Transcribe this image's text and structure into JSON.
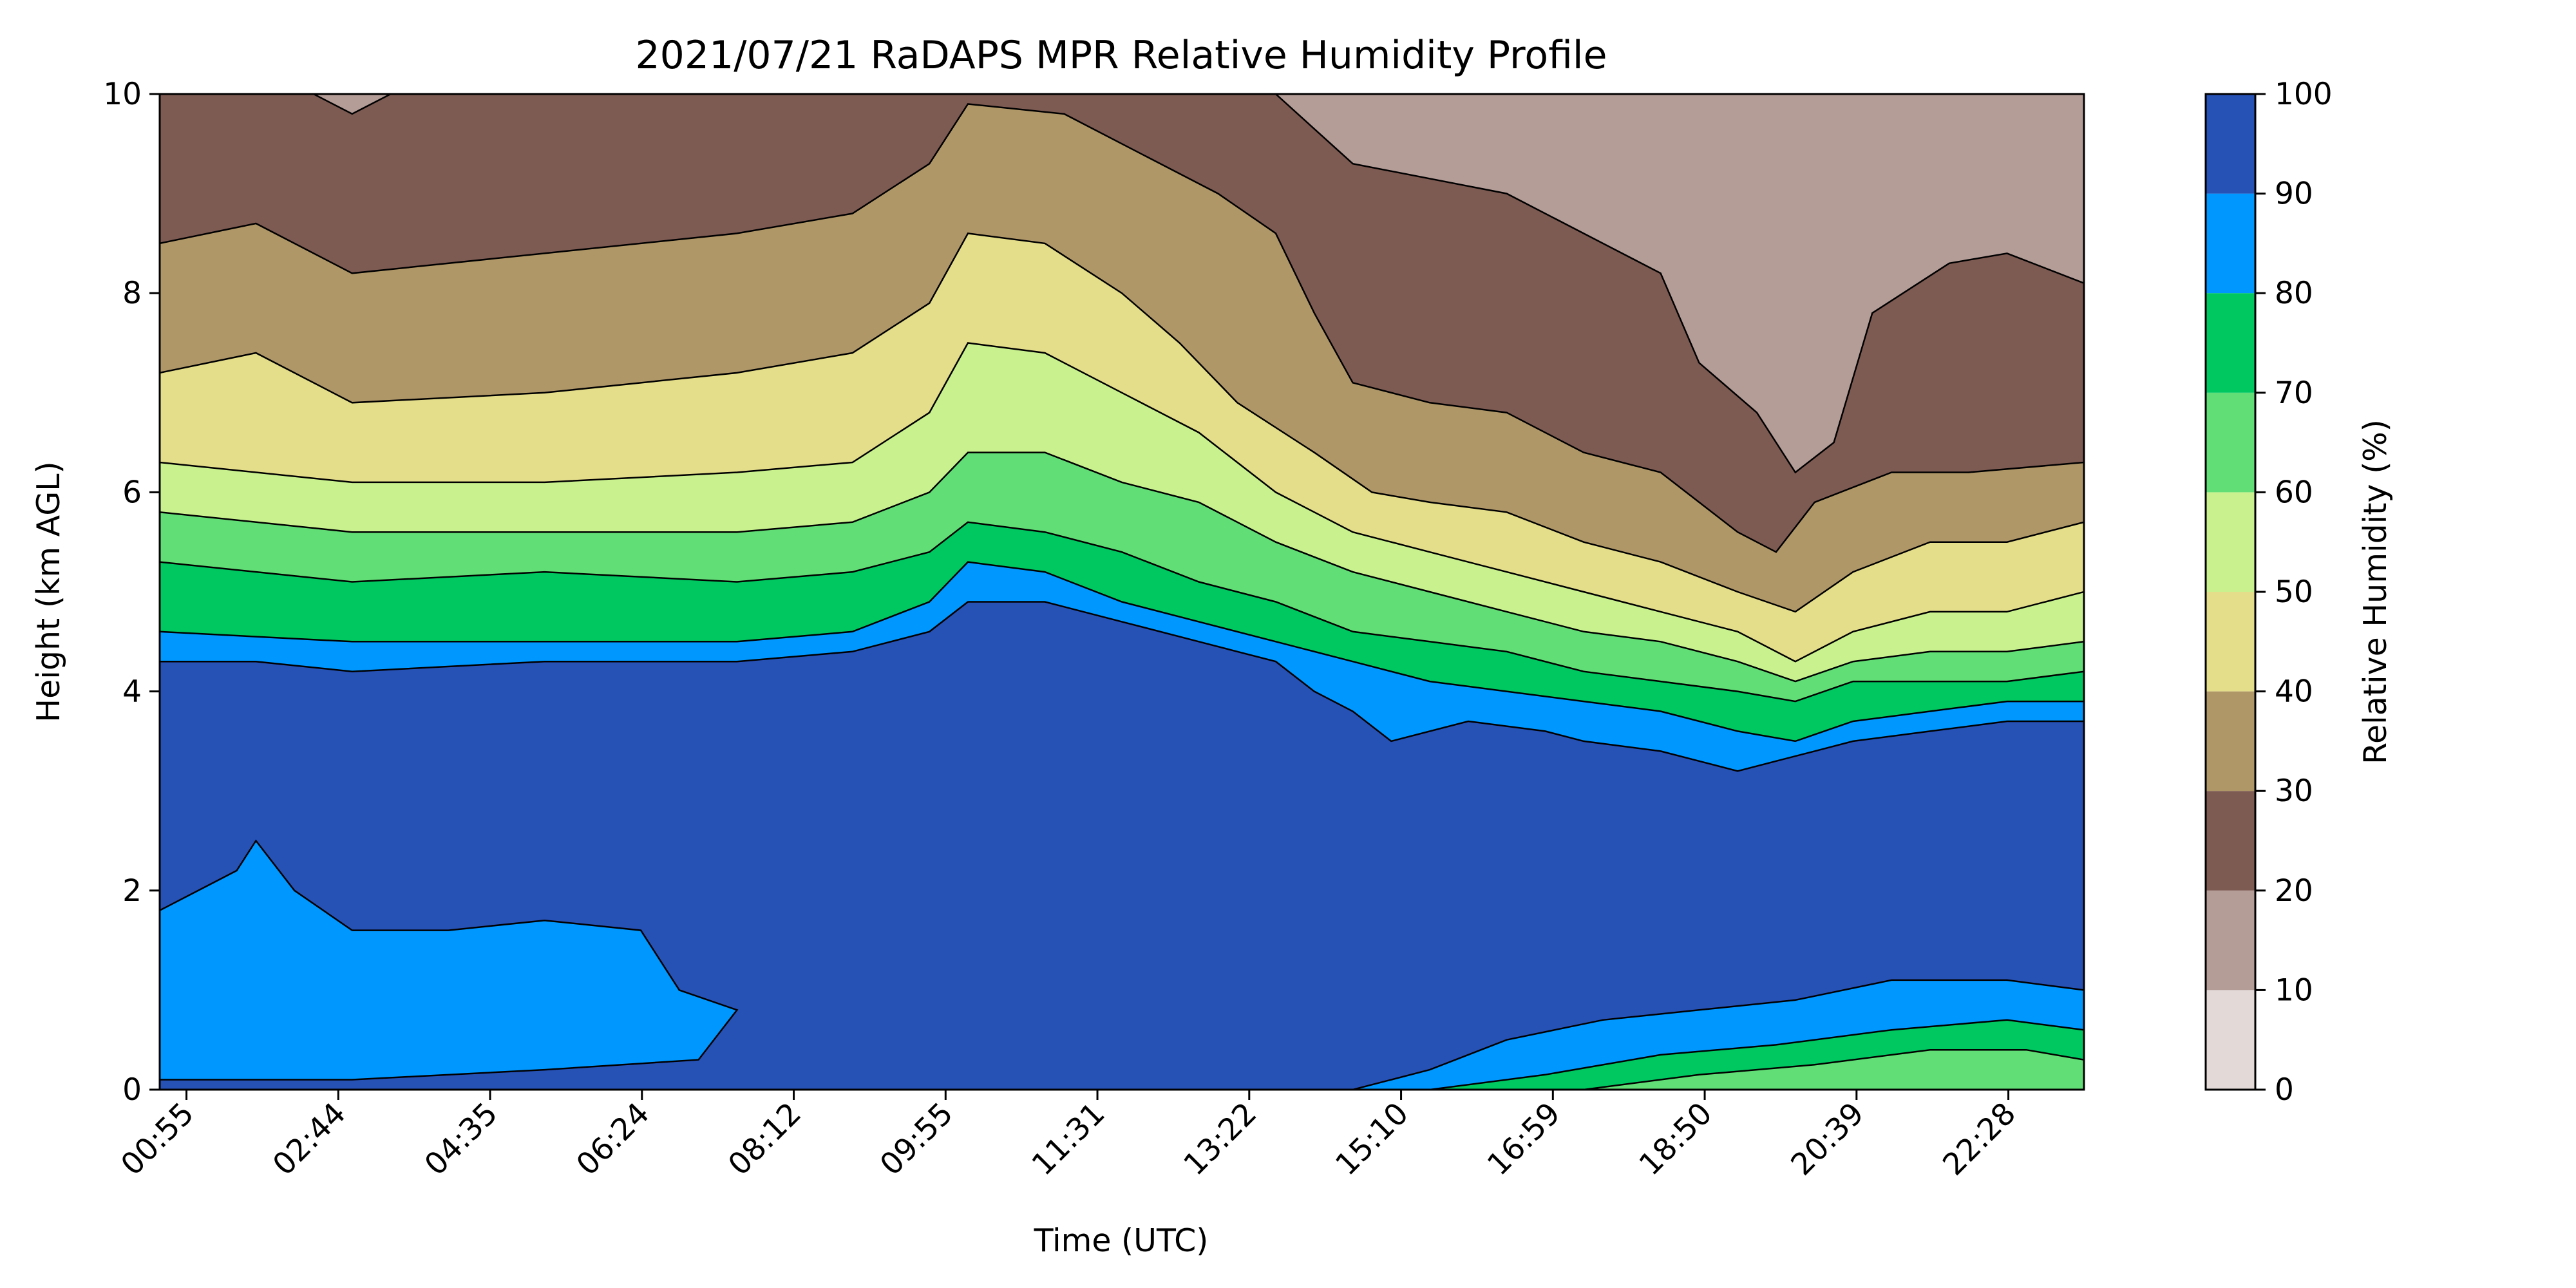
{
  "chart_data": {
    "type": "heatmap",
    "title": "2021/07/21 RaDAPS MPR Relative Humidity Profile",
    "xlabel": "Time (UTC)",
    "ylabel": "Height (km AGL)",
    "x_tick_labels": [
      "00:55",
      "02:44",
      "04:35",
      "06:24",
      "08:12",
      "09:55",
      "11:31",
      "13:22",
      "15:10",
      "16:59",
      "18:50",
      "20:39",
      "22:28"
    ],
    "y_ticks": [
      0,
      2,
      4,
      6,
      8,
      10
    ],
    "ylim": [
      0,
      10
    ],
    "colorbar": {
      "label": "Relative Humidity (%)",
      "ticks": [
        0,
        10,
        20,
        30,
        40,
        50,
        60,
        70,
        80,
        90,
        100
      ],
      "levels": [
        {
          "range": [
            0,
            10
          ],
          "color": "#e3dad7"
        },
        {
          "range": [
            10,
            20
          ],
          "color": "#b49c97"
        },
        {
          "range": [
            20,
            30
          ],
          "color": "#7d5a52"
        },
        {
          "range": [
            30,
            40
          ],
          "color": "#b09768"
        },
        {
          "range": [
            40,
            50
          ],
          "color": "#e4dd8a"
        },
        {
          "range": [
            50,
            60
          ],
          "color": "#c9f28f"
        },
        {
          "range": [
            60,
            70
          ],
          "color": "#62de76"
        },
        {
          "range": [
            70,
            80
          ],
          "color": "#00c861"
        },
        {
          "range": [
            80,
            90
          ],
          "color": "#0097ff"
        },
        {
          "range": [
            90,
            100
          ],
          "color": "#2651b5"
        }
      ]
    },
    "bands": [
      {
        "rh": 10,
        "boundary": [
          [
            0,
            10
          ],
          [
            0.08,
            10
          ],
          [
            0.1,
            9.8
          ],
          [
            0.12,
            10
          ],
          [
            0.58,
            10
          ],
          [
            0.62,
            9.3
          ],
          [
            0.7,
            9.0
          ],
          [
            0.78,
            8.2
          ],
          [
            0.8,
            7.3
          ],
          [
            0.83,
            6.8
          ],
          [
            0.85,
            6.2
          ],
          [
            0.87,
            6.5
          ],
          [
            0.89,
            7.8
          ],
          [
            0.93,
            8.3
          ],
          [
            0.96,
            8.4
          ],
          [
            1,
            8.1
          ]
        ]
      },
      {
        "rh": 20,
        "boundary": [
          [
            0,
            8.5
          ],
          [
            0.05,
            8.7
          ],
          [
            0.1,
            8.2
          ],
          [
            0.2,
            8.4
          ],
          [
            0.3,
            8.6
          ],
          [
            0.36,
            8.8
          ],
          [
            0.4,
            9.3
          ],
          [
            0.42,
            9.9
          ],
          [
            0.47,
            9.8
          ],
          [
            0.51,
            9.4
          ],
          [
            0.55,
            9.0
          ],
          [
            0.58,
            8.6
          ],
          [
            0.6,
            7.8
          ],
          [
            0.62,
            7.1
          ],
          [
            0.66,
            6.9
          ],
          [
            0.7,
            6.8
          ],
          [
            0.74,
            6.4
          ],
          [
            0.78,
            6.2
          ],
          [
            0.8,
            5.9
          ],
          [
            0.82,
            5.6
          ],
          [
            0.84,
            5.4
          ],
          [
            0.86,
            5.9
          ],
          [
            0.9,
            6.2
          ],
          [
            0.94,
            6.2
          ],
          [
            1,
            6.3
          ]
        ]
      },
      {
        "rh": 30,
        "boundary": [
          [
            0,
            7.2
          ],
          [
            0.05,
            7.4
          ],
          [
            0.1,
            6.9
          ],
          [
            0.2,
            7.0
          ],
          [
            0.3,
            7.2
          ],
          [
            0.36,
            7.4
          ],
          [
            0.4,
            7.9
          ],
          [
            0.42,
            8.6
          ],
          [
            0.46,
            8.5
          ],
          [
            0.5,
            8.0
          ],
          [
            0.53,
            7.5
          ],
          [
            0.56,
            6.9
          ],
          [
            0.6,
            6.4
          ],
          [
            0.63,
            6.0
          ],
          [
            0.66,
            5.9
          ],
          [
            0.7,
            5.8
          ],
          [
            0.74,
            5.5
          ],
          [
            0.78,
            5.3
          ],
          [
            0.82,
            5.0
          ],
          [
            0.85,
            4.8
          ],
          [
            0.88,
            5.2
          ],
          [
            0.92,
            5.5
          ],
          [
            0.96,
            5.5
          ],
          [
            1,
            5.7
          ]
        ]
      },
      {
        "rh": 40,
        "boundary": [
          [
            0,
            6.3
          ],
          [
            0.1,
            6.1
          ],
          [
            0.2,
            6.1
          ],
          [
            0.3,
            6.2
          ],
          [
            0.36,
            6.3
          ],
          [
            0.4,
            6.8
          ],
          [
            0.42,
            7.5
          ],
          [
            0.46,
            7.4
          ],
          [
            0.5,
            7.0
          ],
          [
            0.54,
            6.6
          ],
          [
            0.58,
            6.0
          ],
          [
            0.62,
            5.6
          ],
          [
            0.66,
            5.4
          ],
          [
            0.7,
            5.2
          ],
          [
            0.74,
            5.0
          ],
          [
            0.78,
            4.8
          ],
          [
            0.82,
            4.6
          ],
          [
            0.85,
            4.3
          ],
          [
            0.88,
            4.6
          ],
          [
            0.92,
            4.8
          ],
          [
            0.96,
            4.8
          ],
          [
            1,
            5.0
          ]
        ]
      },
      {
        "rh": 50,
        "boundary": [
          [
            0,
            5.8
          ],
          [
            0.1,
            5.6
          ],
          [
            0.2,
            5.6
          ],
          [
            0.3,
            5.6
          ],
          [
            0.36,
            5.7
          ],
          [
            0.4,
            6.0
          ],
          [
            0.42,
            6.4
          ],
          [
            0.46,
            6.4
          ],
          [
            0.5,
            6.1
          ],
          [
            0.54,
            5.9
          ],
          [
            0.58,
            5.5
          ],
          [
            0.62,
            5.2
          ],
          [
            0.66,
            5.0
          ],
          [
            0.7,
            4.8
          ],
          [
            0.74,
            4.6
          ],
          [
            0.78,
            4.5
          ],
          [
            0.82,
            4.3
          ],
          [
            0.85,
            4.1
          ],
          [
            0.88,
            4.3
          ],
          [
            0.92,
            4.4
          ],
          [
            0.96,
            4.4
          ],
          [
            1,
            4.5
          ]
        ]
      },
      {
        "rh": 60,
        "boundary": [
          [
            0,
            5.3
          ],
          [
            0.1,
            5.1
          ],
          [
            0.2,
            5.2
          ],
          [
            0.3,
            5.1
          ],
          [
            0.36,
            5.2
          ],
          [
            0.4,
            5.4
          ],
          [
            0.42,
            5.7
          ],
          [
            0.46,
            5.6
          ],
          [
            0.5,
            5.4
          ],
          [
            0.54,
            5.1
          ],
          [
            0.58,
            4.9
          ],
          [
            0.62,
            4.6
          ],
          [
            0.66,
            4.5
          ],
          [
            0.7,
            4.4
          ],
          [
            0.74,
            4.2
          ],
          [
            0.78,
            4.1
          ],
          [
            0.82,
            4.0
          ],
          [
            0.85,
            3.9
          ],
          [
            0.88,
            4.1
          ],
          [
            0.92,
            4.1
          ],
          [
            0.96,
            4.1
          ],
          [
            1,
            4.2
          ]
        ]
      },
      {
        "rh": 70,
        "boundary": [
          [
            0,
            4.6
          ],
          [
            0.1,
            4.5
          ],
          [
            0.2,
            4.5
          ],
          [
            0.3,
            4.5
          ],
          [
            0.36,
            4.6
          ],
          [
            0.4,
            4.9
          ],
          [
            0.42,
            5.3
          ],
          [
            0.46,
            5.2
          ],
          [
            0.5,
            4.9
          ],
          [
            0.54,
            4.7
          ],
          [
            0.58,
            4.5
          ],
          [
            0.62,
            4.3
          ],
          [
            0.66,
            4.1
          ],
          [
            0.7,
            4.0
          ],
          [
            0.74,
            3.9
          ],
          [
            0.78,
            3.8
          ],
          [
            0.82,
            3.6
          ],
          [
            0.85,
            3.5
          ],
          [
            0.88,
            3.7
          ],
          [
            0.92,
            3.8
          ],
          [
            0.96,
            3.9
          ],
          [
            1,
            3.9
          ]
        ]
      },
      {
        "rh": 80,
        "boundary": [
          [
            0,
            4.3
          ],
          [
            0.05,
            4.3
          ],
          [
            0.1,
            4.2
          ],
          [
            0.2,
            4.3
          ],
          [
            0.3,
            4.3
          ],
          [
            0.36,
            4.4
          ],
          [
            0.4,
            4.6
          ],
          [
            0.42,
            4.9
          ],
          [
            0.46,
            4.9
          ],
          [
            0.5,
            4.7
          ],
          [
            0.54,
            4.5
          ],
          [
            0.56,
            4.4
          ],
          [
            0.58,
            4.3
          ],
          [
            0.6,
            4.0
          ],
          [
            0.62,
            3.8
          ],
          [
            0.64,
            3.5
          ],
          [
            0.68,
            3.7
          ],
          [
            0.72,
            3.6
          ],
          [
            0.74,
            3.5
          ],
          [
            0.78,
            3.4
          ],
          [
            0.8,
            3.3
          ],
          [
            0.82,
            3.2
          ],
          [
            0.84,
            3.3
          ],
          [
            0.86,
            3.4
          ],
          [
            0.88,
            3.5
          ],
          [
            0.92,
            3.6
          ],
          [
            0.96,
            3.7
          ],
          [
            1,
            3.7
          ]
        ]
      },
      {
        "rh": 90,
        "description": "lower moist layer",
        "morning_region": [
          [
            0,
            1.8
          ],
          [
            0.04,
            2.2
          ],
          [
            0.05,
            2.5
          ],
          [
            0.07,
            2.0
          ],
          [
            0.1,
            1.6
          ],
          [
            0.15,
            1.6
          ],
          [
            0.2,
            1.7
          ],
          [
            0.25,
            1.6
          ],
          [
            0.27,
            1.0
          ],
          [
            0.3,
            0.8
          ],
          [
            0.28,
            0.3
          ],
          [
            0.2,
            0.2
          ],
          [
            0.1,
            0.1
          ],
          [
            0,
            0.1
          ]
        ],
        "evening_region": [
          [
            0.62,
            0
          ],
          [
            0.66,
            0.2
          ],
          [
            0.7,
            0.5
          ],
          [
            0.75,
            0.7
          ],
          [
            0.8,
            0.8
          ],
          [
            0.85,
            0.9
          ],
          [
            0.9,
            1.1
          ],
          [
            0.96,
            1.1
          ],
          [
            1,
            1.0
          ],
          [
            1,
            0
          ]
        ]
      }
    ]
  }
}
